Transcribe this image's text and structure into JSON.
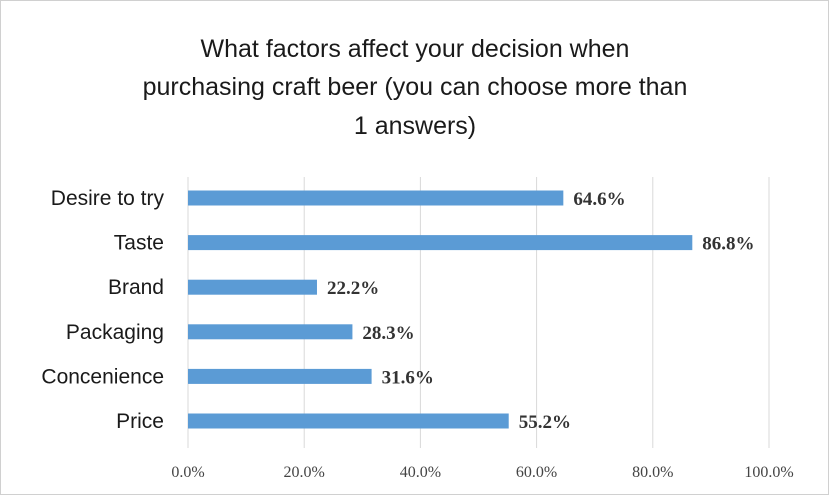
{
  "chart_data": {
    "type": "bar",
    "orientation": "horizontal",
    "title_lines": [
      "What factors affect your decision when",
      "purchasing craft beer (you can choose more than",
      "1 answers)"
    ],
    "categories": [
      "Desire to try",
      "Taste",
      "Brand",
      "Packaging",
      "Concenience",
      "Price"
    ],
    "values": [
      64.6,
      86.8,
      22.2,
      28.3,
      31.6,
      55.2
    ],
    "value_labels": [
      "64.6%",
      "86.8%",
      "22.2%",
      "28.3%",
      "31.6%",
      "55.2%"
    ],
    "xlim": [
      0,
      100
    ],
    "x_ticks": [
      0,
      20,
      40,
      60,
      80,
      100
    ],
    "x_tick_labels": [
      "0.0%",
      "20.0%",
      "40.0%",
      "60.0%",
      "80.0%",
      "100.0%"
    ],
    "xlabel": "",
    "ylabel": "",
    "grid": true,
    "legend": "none",
    "bar_color": "#5b9bd5",
    "grid_color": "#d9d9d9"
  }
}
